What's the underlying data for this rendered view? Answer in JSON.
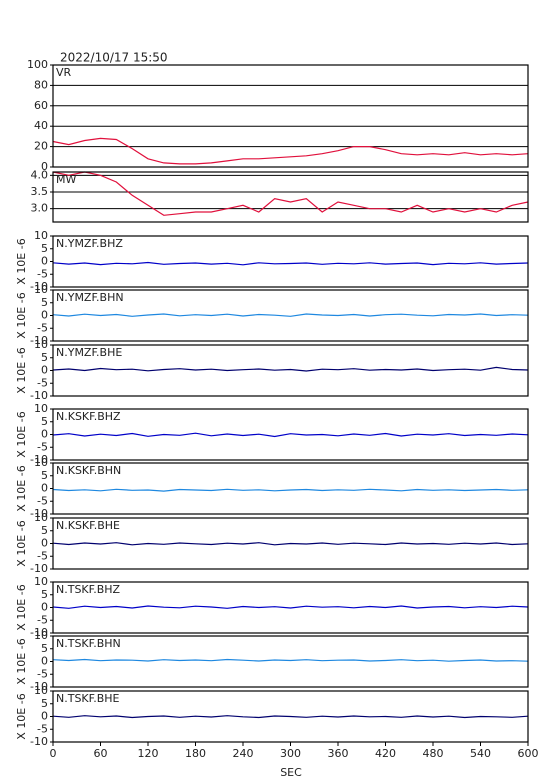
{
  "title": "2022/10/17 15:50",
  "chart_data": [
    {
      "type": "line",
      "title": "VR",
      "x": [
        0,
        20,
        40,
        60,
        80,
        100,
        120,
        140,
        160,
        180,
        200,
        220,
        240,
        260,
        280,
        300,
        320,
        340,
        360,
        380,
        400,
        420,
        440,
        460,
        480,
        500,
        520,
        540,
        560,
        580,
        600
      ],
      "values": [
        25,
        22,
        26,
        28,
        27,
        18,
        8,
        4,
        3,
        3,
        4,
        6,
        8,
        8,
        9,
        10,
        11,
        13,
        16,
        20,
        20,
        17,
        13,
        12,
        13,
        12,
        14,
        12,
        13,
        12,
        13
      ],
      "color": "#e0103c",
      "xlim": [
        0,
        600
      ],
      "ylim": [
        0,
        100
      ],
      "yticks": [
        0,
        20,
        40,
        60,
        80,
        100
      ],
      "grid": true
    },
    {
      "type": "line",
      "title": "MW",
      "x": [
        0,
        20,
        40,
        60,
        80,
        100,
        120,
        140,
        160,
        180,
        200,
        220,
        240,
        260,
        280,
        300,
        320,
        340,
        360,
        380,
        400,
        420,
        440,
        460,
        480,
        500,
        520,
        540,
        560,
        580,
        600
      ],
      "values": [
        4.1,
        4.0,
        4.1,
        4.0,
        3.8,
        3.4,
        3.1,
        2.8,
        2.85,
        2.9,
        2.9,
        3.0,
        3.1,
        2.9,
        3.3,
        3.2,
        3.3,
        2.9,
        3.2,
        3.1,
        3.0,
        3.0,
        2.9,
        3.1,
        2.9,
        3.0,
        2.9,
        3.0,
        2.9,
        3.1,
        3.2
      ],
      "color": "#e0103c",
      "xlim": [
        0,
        600
      ],
      "ylim": [
        2.6,
        4.1
      ],
      "yticks": [
        {
          "value": 3,
          "label": "3.0"
        },
        3.5,
        {
          "value": 4,
          "label": "4.0"
        }
      ],
      "grid": true
    },
    {
      "type": "line",
      "title": "N.YMZF.BHZ",
      "ylabel": "X 10E -6",
      "x": [
        0,
        20,
        40,
        60,
        80,
        100,
        120,
        140,
        160,
        180,
        200,
        220,
        240,
        260,
        280,
        300,
        320,
        340,
        360,
        380,
        400,
        420,
        440,
        460,
        480,
        500,
        520,
        540,
        560,
        580,
        600
      ],
      "values": [
        -0.5,
        -1.0,
        -0.6,
        -1.2,
        -0.7,
        -0.9,
        -0.4,
        -1.1,
        -0.8,
        -0.6,
        -1.0,
        -0.7,
        -1.3,
        -0.5,
        -0.9,
        -0.8,
        -0.6,
        -1.1,
        -0.7,
        -0.9,
        -0.5,
        -1.0,
        -0.8,
        -0.6,
        -1.2,
        -0.7,
        -0.9,
        -0.5,
        -1.0,
        -0.8,
        -0.6
      ],
      "color": "#0000c8",
      "xlim": [
        0,
        600
      ],
      "ylim": [
        -10,
        10
      ],
      "yticks": [
        -10,
        -5,
        0,
        5,
        10
      ],
      "grid": false
    },
    {
      "type": "line",
      "title": "N.YMZF.BHN",
      "ylabel": "X 10E -6",
      "x": [
        0,
        20,
        40,
        60,
        80,
        100,
        120,
        140,
        160,
        180,
        200,
        220,
        240,
        260,
        280,
        300,
        320,
        340,
        360,
        380,
        400,
        420,
        440,
        460,
        480,
        500,
        520,
        540,
        560,
        580,
        600
      ],
      "values": [
        0.3,
        -0.2,
        0.5,
        0.0,
        0.4,
        -0.3,
        0.2,
        0.6,
        -0.1,
        0.3,
        0.0,
        0.5,
        -0.2,
        0.4,
        0.1,
        -0.3,
        0.6,
        0.2,
        0.0,
        0.4,
        -0.2,
        0.3,
        0.5,
        0.1,
        -0.1,
        0.4,
        0.2,
        0.6,
        0.0,
        0.3,
        0.1
      ],
      "color": "#1e88e0",
      "xlim": [
        0,
        600
      ],
      "ylim": [
        -10,
        10
      ],
      "yticks": [
        -10,
        -5,
        0,
        5,
        10
      ],
      "grid": false
    },
    {
      "type": "line",
      "title": "N.YMZF.BHE",
      "ylabel": "X 10E -6",
      "x": [
        0,
        20,
        40,
        60,
        80,
        100,
        120,
        140,
        160,
        180,
        200,
        220,
        240,
        260,
        280,
        300,
        320,
        340,
        360,
        380,
        400,
        420,
        440,
        460,
        480,
        500,
        520,
        540,
        560,
        580,
        600
      ],
      "values": [
        0.2,
        0.6,
        0.0,
        0.8,
        0.3,
        0.5,
        -0.1,
        0.4,
        0.7,
        0.2,
        0.5,
        0.0,
        0.3,
        0.6,
        0.1,
        0.4,
        -0.2,
        0.5,
        0.3,
        0.7,
        0.1,
        0.4,
        0.2,
        0.6,
        0.0,
        0.3,
        0.5,
        0.1,
        1.2,
        0.4,
        0.2
      ],
      "color": "#00006e",
      "xlim": [
        0,
        600
      ],
      "ylim": [
        -10,
        10
      ],
      "yticks": [
        -10,
        -5,
        0,
        5,
        10
      ],
      "grid": false
    },
    {
      "type": "line",
      "title": "N.KSKF.BHZ",
      "ylabel": "X 10E -6",
      "x": [
        0,
        20,
        40,
        60,
        80,
        100,
        120,
        140,
        160,
        180,
        200,
        220,
        240,
        260,
        280,
        300,
        320,
        340,
        360,
        380,
        400,
        420,
        440,
        460,
        480,
        500,
        520,
        540,
        560,
        580,
        600
      ],
      "values": [
        -0.2,
        0.3,
        -0.6,
        0.1,
        -0.4,
        0.4,
        -0.7,
        0.0,
        -0.3,
        0.5,
        -0.5,
        0.2,
        -0.4,
        0.1,
        -0.8,
        0.3,
        -0.2,
        0.0,
        -0.5,
        0.2,
        -0.3,
        0.4,
        -0.6,
        0.1,
        -0.2,
        0.3,
        -0.4,
        0.0,
        -0.3,
        0.2,
        -0.1
      ],
      "color": "#0000c8",
      "xlim": [
        0,
        600
      ],
      "ylim": [
        -10,
        10
      ],
      "yticks": [
        -10,
        -5,
        0,
        5,
        10
      ],
      "grid": false
    },
    {
      "type": "line",
      "title": "N.KSKF.BHN",
      "ylabel": "X 10E -6",
      "x": [
        0,
        20,
        40,
        60,
        80,
        100,
        120,
        140,
        160,
        180,
        200,
        220,
        240,
        260,
        280,
        300,
        320,
        340,
        360,
        380,
        400,
        420,
        440,
        460,
        480,
        500,
        520,
        540,
        560,
        580,
        600
      ],
      "values": [
        -0.4,
        -0.8,
        -0.5,
        -0.9,
        -0.3,
        -0.7,
        -0.6,
        -1.0,
        -0.4,
        -0.6,
        -0.8,
        -0.3,
        -0.7,
        -0.5,
        -0.9,
        -0.6,
        -0.4,
        -0.8,
        -0.5,
        -0.7,
        -0.3,
        -0.6,
        -0.9,
        -0.4,
        -0.7,
        -0.5,
        -0.8,
        -0.6,
        -0.4,
        -0.7,
        -0.5
      ],
      "color": "#1e88e0",
      "xlim": [
        0,
        600
      ],
      "ylim": [
        -10,
        10
      ],
      "yticks": [
        -10,
        -5,
        0,
        5,
        10
      ],
      "grid": false
    },
    {
      "type": "line",
      "title": "N.KSKF.BHE",
      "ylabel": "X 10E -6",
      "x": [
        0,
        20,
        40,
        60,
        80,
        100,
        120,
        140,
        160,
        180,
        200,
        220,
        240,
        260,
        280,
        300,
        320,
        340,
        360,
        380,
        400,
        420,
        440,
        460,
        480,
        500,
        520,
        540,
        560,
        580,
        600
      ],
      "values": [
        0.1,
        -0.4,
        0.2,
        -0.2,
        0.3,
        -0.5,
        0.0,
        -0.3,
        0.2,
        -0.1,
        -0.4,
        0.1,
        -0.2,
        0.3,
        -0.5,
        0.0,
        -0.2,
        0.2,
        -0.3,
        0.1,
        -0.1,
        -0.4,
        0.2,
        -0.2,
        0.0,
        -0.3,
        0.1,
        -0.2,
        0.2,
        -0.4,
        -0.1
      ],
      "color": "#00006e",
      "xlim": [
        0,
        600
      ],
      "ylim": [
        -10,
        10
      ],
      "yticks": [
        -10,
        -5,
        0,
        5,
        10
      ],
      "grid": false
    },
    {
      "type": "line",
      "title": "N.TSKF.BHZ",
      "ylabel": "X 10E -6",
      "x": [
        0,
        20,
        40,
        60,
        80,
        100,
        120,
        140,
        160,
        180,
        200,
        220,
        240,
        260,
        280,
        300,
        320,
        340,
        360,
        380,
        400,
        420,
        440,
        460,
        480,
        500,
        520,
        540,
        560,
        580,
        600
      ],
      "values": [
        0.2,
        -0.3,
        0.5,
        0.0,
        0.4,
        -0.2,
        0.6,
        0.1,
        -0.1,
        0.5,
        0.2,
        -0.3,
        0.4,
        0.0,
        0.3,
        -0.2,
        0.5,
        0.1,
        0.3,
        -0.1,
        0.4,
        0.0,
        0.6,
        -0.2,
        0.2,
        0.4,
        -0.1,
        0.3,
        0.0,
        0.5,
        0.2
      ],
      "color": "#0000c8",
      "xlim": [
        0,
        600
      ],
      "ylim": [
        -10,
        10
      ],
      "yticks": [
        -10,
        -5,
        0,
        5,
        10
      ],
      "grid": false
    },
    {
      "type": "line",
      "title": "N.TSKF.BHN",
      "ylabel": "X 10E -6",
      "x": [
        0,
        20,
        40,
        60,
        80,
        100,
        120,
        140,
        160,
        180,
        200,
        220,
        240,
        260,
        280,
        300,
        320,
        340,
        360,
        380,
        400,
        420,
        440,
        460,
        480,
        500,
        520,
        540,
        560,
        580,
        600
      ],
      "values": [
        0.7,
        0.4,
        0.8,
        0.3,
        0.6,
        0.5,
        0.2,
        0.7,
        0.4,
        0.6,
        0.3,
        0.8,
        0.5,
        0.2,
        0.6,
        0.4,
        0.7,
        0.3,
        0.5,
        0.6,
        0.2,
        0.4,
        0.7,
        0.3,
        0.5,
        0.1,
        0.4,
        0.6,
        0.2,
        0.3,
        0.1
      ],
      "color": "#1e88e0",
      "xlim": [
        0,
        600
      ],
      "ylim": [
        -10,
        10
      ],
      "yticks": [
        -10,
        -5,
        0,
        5,
        10
      ],
      "grid": false
    },
    {
      "type": "line",
      "title": "N.TSKF.BHE",
      "ylabel": "X 10E -6",
      "x": [
        0,
        20,
        40,
        60,
        80,
        100,
        120,
        140,
        160,
        180,
        200,
        220,
        240,
        260,
        280,
        300,
        320,
        340,
        360,
        380,
        400,
        420,
        440,
        460,
        480,
        500,
        520,
        540,
        560,
        580,
        600
      ],
      "values": [
        0.1,
        -0.3,
        0.3,
        -0.1,
        0.2,
        -0.4,
        0.0,
        0.2,
        -0.3,
        0.1,
        -0.2,
        0.3,
        -0.1,
        -0.4,
        0.2,
        0.0,
        -0.3,
        0.1,
        -0.2,
        0.2,
        -0.1,
        0.0,
        -0.3,
        0.2,
        -0.2,
        0.1,
        -0.4,
        0.0,
        -0.1,
        -0.3,
        0.1
      ],
      "color": "#00006e",
      "xlim": [
        0,
        600
      ],
      "ylim": [
        -10,
        10
      ],
      "yticks": [
        -10,
        -5,
        0,
        5,
        10
      ],
      "grid": false,
      "xticks": [
        0,
        60,
        120,
        180,
        240,
        300,
        360,
        420,
        480,
        540,
        600
      ],
      "xlabel": "SEC"
    }
  ]
}
